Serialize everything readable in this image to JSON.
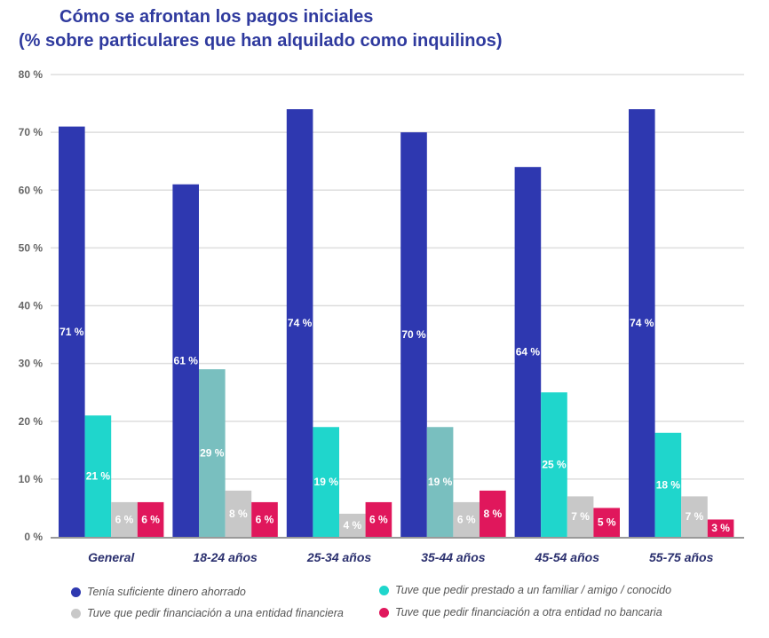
{
  "chart_data": {
    "type": "bar",
    "title": "Cómo se afrontan los pagos iniciales",
    "subtitle": "(% sobre particulares que han alquilado como inquilinos)",
    "categories": [
      "General",
      "18-24 años",
      "25-34 años",
      "35-44 años",
      "45-54 años",
      "55-75 años"
    ],
    "ylim": [
      0,
      80
    ],
    "yticks": [
      0,
      10,
      20,
      30,
      40,
      50,
      60,
      70,
      80
    ],
    "ytick_labels": [
      "0 %",
      "10 %",
      "20 %",
      "30 %",
      "40 %",
      "50 %",
      "60 %",
      "70 %",
      "80 %"
    ],
    "grid": true,
    "legend_position": "bottom",
    "series": [
      {
        "name": "Tenía suficiente dinero ahorrado",
        "color": "#2e38b0",
        "values": [
          71,
          61,
          74,
          70,
          64,
          74
        ],
        "labels": [
          "71 %",
          "61 %",
          "74 %",
          "70 %",
          "64 %",
          "74 %"
        ]
      },
      {
        "name": "Tuve que pedir prestado a un familiar / amigo / conocido",
        "color": "#1fd6cc",
        "point_colors": [
          "#1fd6cc",
          "#79bfbf",
          "#1fd6cc",
          "#79bfbf",
          "#1fd6cc",
          "#1fd6cc"
        ],
        "values": [
          21,
          29,
          19,
          19,
          25,
          18
        ],
        "labels": [
          "21 %",
          "29 %",
          "19 %",
          "19 %",
          "25 %",
          "18 %"
        ]
      },
      {
        "name": "Tuve que pedir financiación a una entidad financiera",
        "color": "#c8c8c8",
        "values": [
          6,
          8,
          4,
          6,
          7,
          7
        ],
        "labels": [
          "6 %",
          "8 %",
          "4 %",
          "6 %",
          "7 %",
          "7 %"
        ]
      },
      {
        "name": "Tuve que pedir financiación a otra entidad no bancaria",
        "color": "#e0175c",
        "values": [
          6,
          6,
          6,
          8,
          5,
          3
        ],
        "labels": [
          "6 %",
          "6 %",
          "6 %",
          "8 %",
          "5 %",
          "3 %"
        ]
      }
    ]
  }
}
